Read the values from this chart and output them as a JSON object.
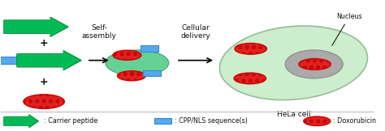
{
  "fig_width": 4.74,
  "fig_height": 1.62,
  "dpi": 100,
  "bg_color": "#ffffff",
  "cpp_color": "#55aaee",
  "cpp_edge": "#3388cc",
  "dox_color_fill": "#dd2222",
  "dox_color_edge": "#cc0000",
  "cell_fill": "#cceecc",
  "cell_edge": "#99bb99",
  "nucleus_fill": "#aaaaaa",
  "nucleus_edge": "#888888",
  "carrier_body": "#00bb55",
  "carrier_edge": "#007733",
  "blob_fill": "#55cc88",
  "blob_edge": "#339966",
  "self_assembly_text": "Self-\nassembly",
  "cellular_delivery_text": "Cellular\ndelivery",
  "nucleus_text": "Nucleus",
  "hela_text": "HeLa cell",
  "legend_carrier": ": Carrier peptide",
  "legend_cpp": ": CPP/NLS sequence(s)",
  "legend_dox": ": Doxorubicin",
  "text_color": "#111111"
}
